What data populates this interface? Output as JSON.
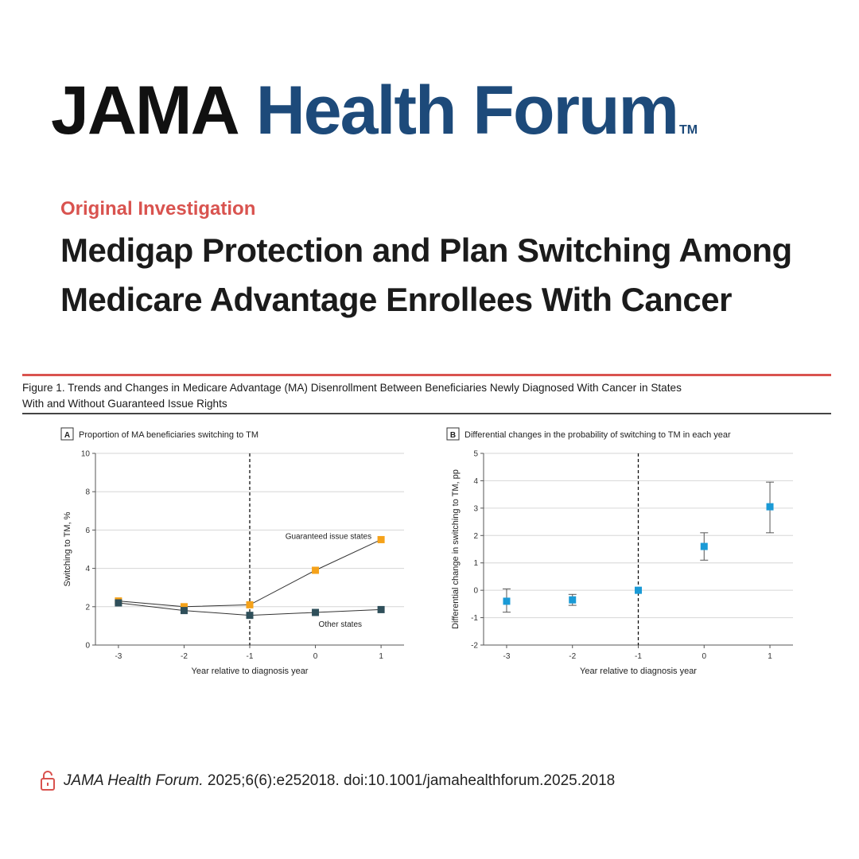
{
  "header": {
    "brand_part1": "JAMA",
    "brand_part2": "Health Forum",
    "trademark": "TM",
    "brand_color": "#1d4a7a",
    "accent_color": "#d9534f"
  },
  "article": {
    "label": "Original Investigation",
    "title": "Medigap Protection and Plan Switching Among Medicare Advantage Enrollees  With Cancer"
  },
  "figure": {
    "caption_line1": "Figure 1. Trends and Changes in Medicare Advantage (MA) Disenrollment Between Beneficiaries Newly Diagnosed With Cancer in States",
    "caption_line2": "With and Without Guaranteed Issue Rights"
  },
  "chart_data": [
    {
      "panel": "A",
      "type": "line",
      "title": "Proportion of MA beneficiaries switching to TM",
      "xlabel": "Year relative to diagnosis year",
      "ylabel": "Switching to TM, %",
      "x": [
        -3,
        -2,
        -1,
        0,
        1
      ],
      "xticks": [
        "-3",
        "-2",
        "-1",
        "0",
        "1"
      ],
      "ylim": [
        0,
        10
      ],
      "yticks": [
        0,
        2,
        4,
        6,
        8,
        10
      ],
      "vline_x": -1,
      "grid": true,
      "series": [
        {
          "name": "Guaranteed issue states",
          "values": [
            2.3,
            2.0,
            2.1,
            3.9,
            5.5
          ],
          "color": "#f5a21a"
        },
        {
          "name": "Other states",
          "values": [
            2.2,
            1.8,
            1.55,
            1.7,
            1.85
          ],
          "color": "#2f4f5a"
        }
      ]
    },
    {
      "panel": "B",
      "type": "scatter",
      "title": "Differential changes in the probability of switching to TM in each year",
      "xlabel": "Year relative to diagnosis year",
      "ylabel": "Differential change in switching to TM, pp",
      "x": [
        -3,
        -2,
        -1,
        0,
        1
      ],
      "xticks": [
        "-3",
        "-2",
        "-1",
        "0",
        "1"
      ],
      "ylim": [
        -2,
        5
      ],
      "yticks": [
        -2,
        -1,
        0,
        1,
        2,
        3,
        4,
        5
      ],
      "vline_x": -1,
      "grid": true,
      "series": [
        {
          "name": "Differential change",
          "values": [
            -0.4,
            -0.35,
            0.0,
            1.6,
            3.05
          ],
          "ci_low": [
            -0.8,
            -0.55,
            0.0,
            1.1,
            2.1
          ],
          "ci_high": [
            0.05,
            -0.15,
            0.0,
            2.1,
            3.95
          ],
          "color": "#1a9ad6"
        }
      ]
    }
  ],
  "citation": {
    "journal": "JAMA Health Forum.",
    "details": " 2025;6(6):e252018. doi:10.1001/jamahealthforum.2025.2018"
  }
}
